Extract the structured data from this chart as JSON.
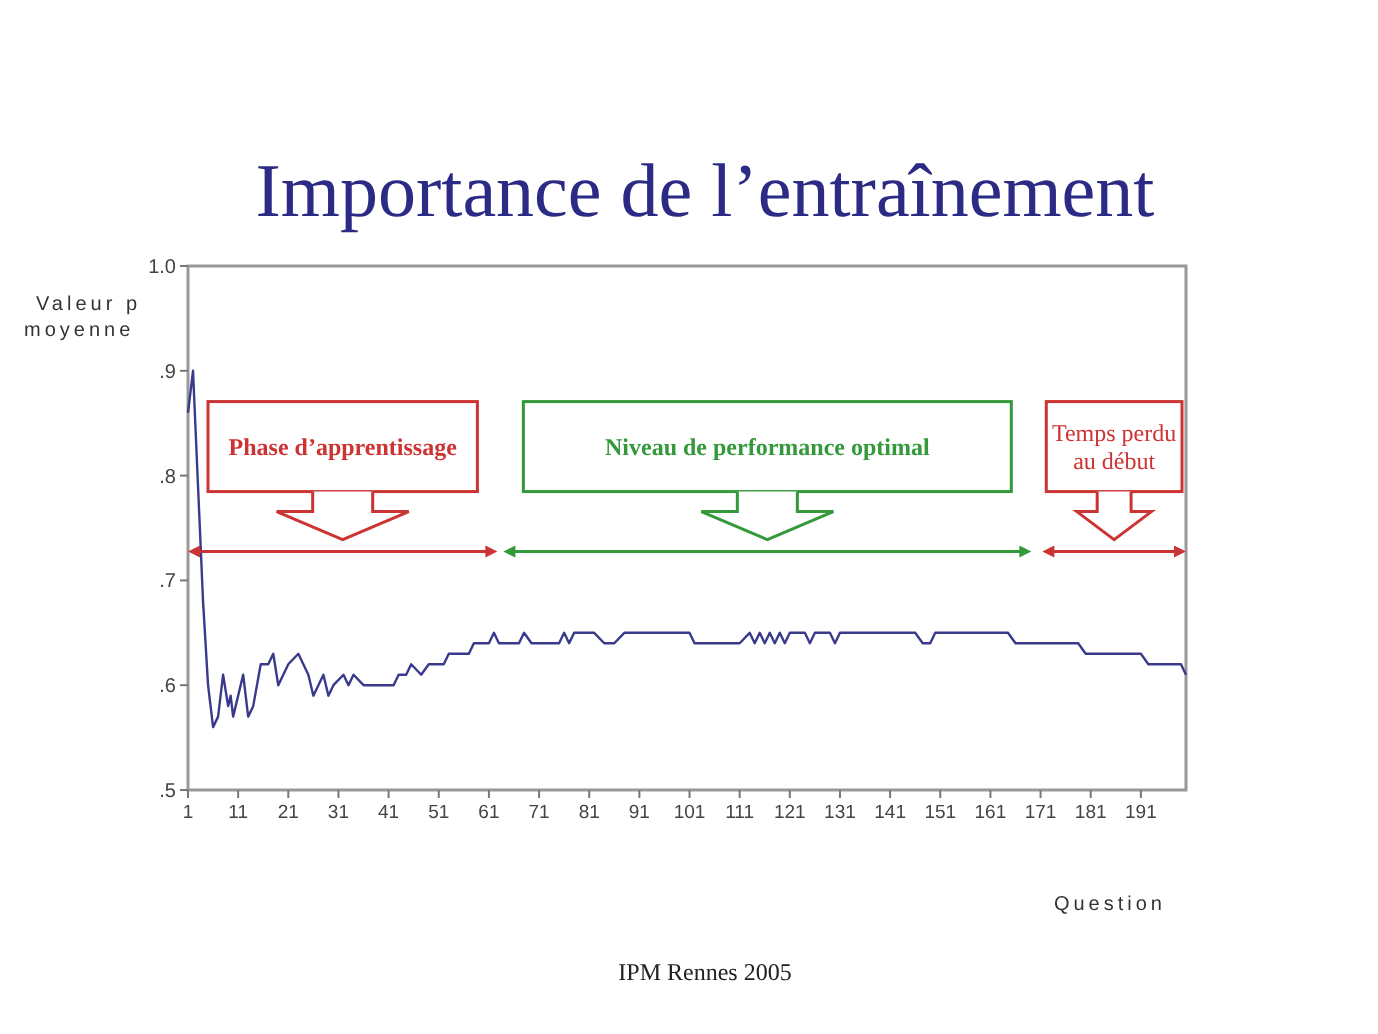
{
  "chart_data": {
    "type": "line",
    "title": "Importance de l’entraînement",
    "xlabel": "Question",
    "ylabel": "Valeur p moyenne",
    "xlim": [
      1,
      200
    ],
    "ylim": [
      0.5,
      1.0
    ],
    "xticks": [
      1,
      11,
      21,
      31,
      41,
      51,
      61,
      71,
      81,
      91,
      101,
      111,
      121,
      131,
      141,
      151,
      161,
      171,
      181,
      191
    ],
    "yticks": [
      {
        "value": 0.5,
        "label": ".5"
      },
      {
        "value": 0.6,
        "label": ".6"
      },
      {
        "value": 0.7,
        "label": ".7"
      },
      {
        "value": 0.8,
        "label": ".8"
      },
      {
        "value": 0.9,
        "label": ".9"
      },
      {
        "value": 1.0,
        "label": "1.0"
      }
    ],
    "grid": false,
    "marker": "none",
    "line_style": "solid",
    "series": [
      {
        "color": "#3a3a8c",
        "x": [
          1,
          2,
          3,
          4,
          5,
          6,
          7,
          8,
          9,
          9.5,
          10,
          12,
          13,
          14,
          15.5,
          17,
          18,
          19,
          21,
          23,
          25,
          26,
          28,
          29,
          30,
          32,
          33,
          34,
          36,
          42,
          43,
          44.5,
          45.5,
          47.5,
          49,
          52,
          53,
          57,
          58,
          61,
          62,
          63,
          67,
          68,
          69.5,
          75,
          76,
          77,
          78,
          82,
          84,
          86,
          88,
          101,
          102,
          111,
          113,
          114,
          115,
          116,
          117,
          118,
          119,
          120,
          121,
          124,
          125,
          126,
          129,
          130,
          131,
          146,
          147.5,
          149,
          150,
          164.5,
          166,
          178.5,
          180,
          191,
          192.5,
          199,
          200
        ],
        "values": [
          0.86,
          0.9,
          0.79,
          0.68,
          0.6,
          0.56,
          0.57,
          0.61,
          0.58,
          0.59,
          0.57,
          0.61,
          0.57,
          0.58,
          0.62,
          0.62,
          0.63,
          0.6,
          0.62,
          0.63,
          0.61,
          0.59,
          0.61,
          0.59,
          0.6,
          0.61,
          0.6,
          0.61,
          0.6,
          0.6,
          0.61,
          0.61,
          0.62,
          0.61,
          0.62,
          0.62,
          0.63,
          0.63,
          0.64,
          0.64,
          0.65,
          0.64,
          0.64,
          0.65,
          0.64,
          0.64,
          0.65,
          0.64,
          0.65,
          0.65,
          0.64,
          0.64,
          0.65,
          0.65,
          0.64,
          0.64,
          0.65,
          0.64,
          0.65,
          0.64,
          0.65,
          0.64,
          0.65,
          0.64,
          0.65,
          0.65,
          0.64,
          0.65,
          0.65,
          0.64,
          0.65,
          0.65,
          0.64,
          0.64,
          0.65,
          0.65,
          0.64,
          0.64,
          0.63,
          0.63,
          0.62,
          0.62,
          0.61
        ]
      }
    ],
    "annotations": [
      "Phase d’apprentissage",
      "Niveau de performance  optimal",
      "Temps perdu au début",
      "IPM Rennes 2005"
    ]
  }
}
